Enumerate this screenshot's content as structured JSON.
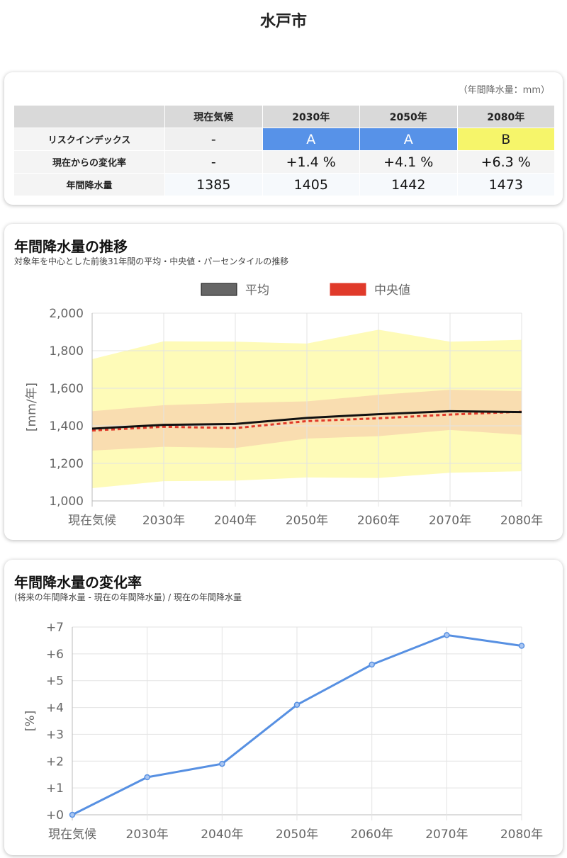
{
  "page": {
    "title": "水戸市"
  },
  "summary": {
    "unit_note": "（年間降水量：mm）",
    "headers": [
      "",
      "現在気候",
      "2030年",
      "2050年",
      "2080年"
    ],
    "rows": [
      {
        "label": "リスクインデックス",
        "values": [
          "-",
          "A",
          "A",
          "B"
        ]
      },
      {
        "label": "現在からの変化率",
        "values": [
          "-",
          "+1.4 %",
          "+4.1 %",
          "+6.3 %"
        ]
      },
      {
        "label": "年間降水量",
        "values": [
          "1385",
          "1405",
          "1442",
          "1473"
        ]
      }
    ],
    "risk_colors": {
      "A": "#5792e8",
      "B": "#f6f56a"
    }
  },
  "chart1": {
    "title": "年間降水量の推移",
    "subtitle": "対象年を中心とした前後31年間の平均・中央値・パーセンタイルの推移",
    "chart_data": {
      "type": "line",
      "categories": [
        "現在気候",
        "2030年",
        "2040年",
        "2050年",
        "2060年",
        "2070年",
        "2080年"
      ],
      "ylabel": "[mm/年]",
      "ylim": [
        1000,
        2000
      ],
      "yticks": [
        "1,000",
        "1,200",
        "1,400",
        "1,600",
        "1,800",
        "2,000"
      ],
      "series": [
        {
          "name": "平均",
          "color": "#111111",
          "values": [
            1385,
            1405,
            1410,
            1442,
            1462,
            1478,
            1473
          ]
        },
        {
          "name": "中央値",
          "color": "#e03a2a",
          "values": [
            1375,
            1395,
            1388,
            1425,
            1440,
            1460,
            1475
          ]
        }
      ],
      "bands": [
        {
          "color": "#fefbb8",
          "upper": [
            1755,
            1850,
            1848,
            1838,
            1912,
            1848,
            1858
          ],
          "lower": [
            1068,
            1105,
            1108,
            1125,
            1122,
            1150,
            1158
          ]
        },
        {
          "color": "#f9ddb0",
          "upper": [
            1478,
            1510,
            1522,
            1530,
            1565,
            1592,
            1585
          ],
          "lower": [
            1268,
            1288,
            1282,
            1332,
            1345,
            1378,
            1352
          ]
        }
      ],
      "legend_position": "top"
    }
  },
  "chart2": {
    "title": "年間降水量の変化率",
    "subtitle": "(将来の年間降水量 - 現在の年間降水量) / 現在の年間降水量",
    "chart_data": {
      "type": "line",
      "categories": [
        "現在気候",
        "2030年",
        "2040年",
        "2050年",
        "2060年",
        "2070年",
        "2080年"
      ],
      "ylabel": "[%]",
      "ylim": [
        0,
        7
      ],
      "yticks": [
        "+0",
        "+1",
        "+2",
        "+3",
        "+4",
        "+5",
        "+6",
        "+7"
      ],
      "series": [
        {
          "color": "#5790e2",
          "values": [
            0,
            1.4,
            1.9,
            4.1,
            5.6,
            6.7,
            6.3
          ]
        }
      ]
    }
  }
}
